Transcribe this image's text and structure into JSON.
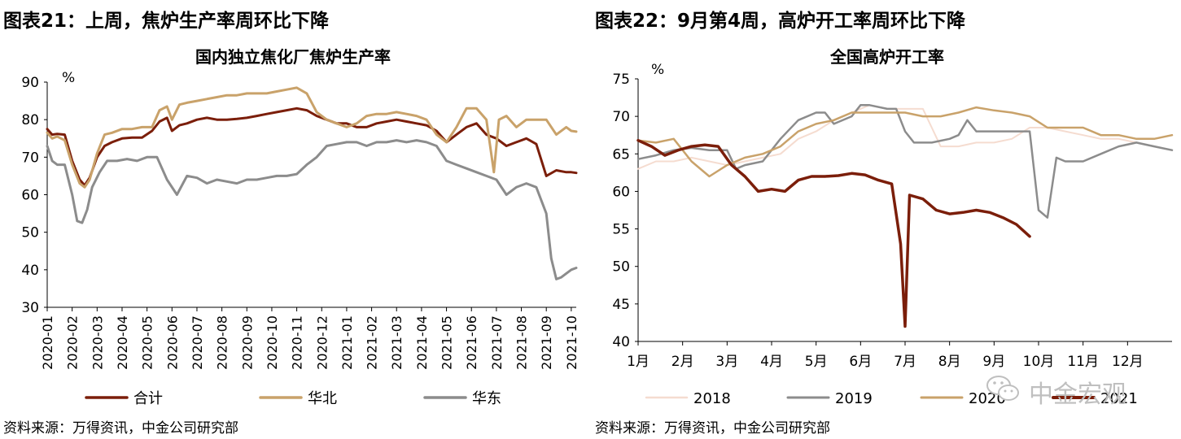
{
  "left": {
    "figure_title": "图表21：上周，焦炉生产率周环比下降",
    "source": "资料来源：万得资讯，中金公司研究部"
  },
  "right": {
    "figure_title": "图表22：9月第4周，高炉开工率周环比下降",
    "source": "资料来源：万得资讯，中金公司研究部"
  },
  "watermark": {
    "text": "中金宏观",
    "icon": "wechat-icon"
  },
  "chart_data": [
    {
      "type": "line",
      "title": "国内独立焦化厂焦炉生产率",
      "ylabel": "%",
      "ylim": [
        30,
        90
      ],
      "yticks": [
        30,
        40,
        50,
        60,
        70,
        80,
        90
      ],
      "xlim": [
        0,
        21.2
      ],
      "x_categories": [
        "2020-01",
        "2020-02",
        "2020-03",
        "2020-04",
        "2020-05",
        "2020-06",
        "2020-07",
        "2020-08",
        "2020-09",
        "2020-10",
        "2020-11",
        "2020-12",
        "2021-01",
        "2021-02",
        "2021-03",
        "2021-04",
        "2021-05",
        "2021-06",
        "2021-07",
        "2021-08",
        "2021-09",
        "2021-10"
      ],
      "grid": false,
      "legend_position": "bottom",
      "series": [
        {
          "name": "合计",
          "color": "#7b1e0a",
          "stroke_width": 3,
          "x": [
            0,
            0.2,
            0.4,
            0.7,
            1.0,
            1.3,
            1.5,
            1.7,
            2.0,
            2.3,
            2.6,
            3.0,
            3.4,
            3.8,
            4.2,
            4.5,
            4.8,
            5.0,
            5.3,
            5.6,
            6.0,
            6.4,
            6.8,
            7.2,
            7.6,
            8.0,
            8.4,
            8.8,
            9.2,
            9.6,
            10.0,
            10.4,
            10.8,
            11.2,
            11.6,
            12.0,
            12.4,
            12.8,
            13.2,
            13.6,
            14.0,
            14.4,
            14.8,
            15.2,
            15.6,
            16.0,
            16.4,
            16.8,
            17.2,
            17.6,
            18.0,
            18.4,
            18.8,
            19.2,
            19.6,
            20.0,
            20.4,
            20.8,
            21.0,
            21.2
          ],
          "y": [
            77.5,
            76,
            76.2,
            76,
            69,
            64,
            62.5,
            64.5,
            70,
            73,
            74,
            75,
            75.2,
            75.2,
            77,
            79.5,
            80.5,
            77,
            78.5,
            79,
            80,
            80.5,
            80,
            80,
            80.2,
            80.5,
            81,
            81.5,
            82,
            82.5,
            83,
            82.5,
            81,
            80,
            79,
            79,
            78,
            78,
            79,
            79.5,
            80,
            79.5,
            79,
            78.5,
            77,
            74,
            76,
            78,
            79,
            76,
            75,
            73,
            74,
            75,
            73.5,
            65,
            66.5,
            66,
            66,
            65.8
          ]
        },
        {
          "name": "华北",
          "color": "#c9a26a",
          "stroke_width": 3,
          "x": [
            0,
            0.2,
            0.4,
            0.7,
            1.0,
            1.3,
            1.5,
            1.7,
            2.0,
            2.3,
            2.6,
            3.0,
            3.4,
            3.8,
            4.2,
            4.5,
            4.8,
            5.0,
            5.3,
            5.6,
            6.0,
            6.4,
            6.8,
            7.2,
            7.6,
            8.0,
            8.4,
            8.8,
            9.2,
            9.6,
            10.0,
            10.4,
            10.8,
            11.2,
            11.6,
            12.0,
            12.4,
            12.8,
            13.2,
            13.6,
            14.0,
            14.4,
            14.8,
            15.2,
            15.6,
            16.0,
            16.4,
            16.8,
            17.2,
            17.6,
            17.9,
            18.1,
            18.4,
            18.8,
            19.2,
            19.6,
            20.0,
            20.4,
            20.8,
            21.0,
            21.2
          ],
          "y": [
            76.5,
            75,
            75.5,
            74.5,
            68,
            63,
            62,
            64,
            71,
            76,
            76.5,
            77.5,
            77.5,
            78,
            78,
            82.5,
            83.5,
            80,
            84,
            84.5,
            85,
            85.5,
            86,
            86.5,
            86.5,
            87,
            87,
            87,
            87.5,
            88,
            88.5,
            87,
            82,
            80,
            79,
            78,
            79,
            81,
            81.5,
            81.5,
            82,
            81.5,
            81,
            80,
            76,
            74,
            78,
            83,
            83,
            80,
            66,
            80,
            81,
            78,
            80,
            80,
            80,
            76,
            78,
            77,
            76.8
          ]
        },
        {
          "name": "华东",
          "color": "#8c8c8c",
          "stroke_width": 3,
          "x": [
            0,
            0.2,
            0.4,
            0.7,
            1.0,
            1.2,
            1.4,
            1.6,
            1.8,
            2.1,
            2.4,
            2.8,
            3.2,
            3.6,
            4.0,
            4.4,
            4.8,
            5.2,
            5.6,
            6.0,
            6.4,
            6.8,
            7.2,
            7.6,
            8.0,
            8.4,
            8.8,
            9.2,
            9.6,
            10.0,
            10.4,
            10.8,
            11.2,
            11.6,
            12.0,
            12.4,
            12.8,
            13.2,
            13.6,
            14.0,
            14.4,
            14.8,
            15.2,
            15.6,
            16.0,
            16.4,
            16.8,
            17.2,
            17.6,
            18.0,
            18.4,
            18.8,
            19.2,
            19.6,
            20.0,
            20.2,
            20.4,
            20.6,
            20.8,
            21.0,
            21.2
          ],
          "y": [
            73,
            69,
            68,
            68,
            60,
            53,
            52.5,
            56,
            62,
            66,
            69,
            69,
            69.5,
            69,
            70,
            70,
            64,
            60,
            65,
            64.5,
            63,
            64,
            63.5,
            63,
            64,
            64,
            64.5,
            65,
            65,
            65.5,
            68,
            70,
            73,
            73.5,
            74,
            74,
            73,
            74,
            74,
            74.5,
            74,
            74.5,
            74,
            73,
            69,
            68,
            67,
            66,
            65,
            64,
            60,
            62,
            63,
            62,
            55,
            43,
            37.5,
            38,
            39,
            40,
            40.5
          ]
        }
      ]
    },
    {
      "type": "line",
      "title": "全国高炉开工率",
      "ylabel": "%",
      "ylim": [
        40,
        75
      ],
      "yticks": [
        40,
        45,
        50,
        55,
        60,
        65,
        70,
        75
      ],
      "xlim": [
        1,
        13
      ],
      "x_categories": [
        "1月",
        "2月",
        "3月",
        "4月",
        "5月",
        "6月",
        "7月",
        "8月",
        "9月",
        "10月",
        "11月",
        "12月"
      ],
      "grid": false,
      "legend_position": "bottom",
      "series": [
        {
          "name": "2018",
          "color": "#f5dcd0",
          "stroke_width": 2,
          "x": [
            1,
            1.4,
            1.8,
            2.2,
            2.6,
            3.0,
            3.4,
            3.8,
            4.2,
            4.6,
            5.0,
            5.4,
            5.8,
            6.2,
            6.6,
            7.0,
            7.4,
            7.8,
            8.2,
            8.6,
            9.0,
            9.4,
            9.8,
            10.2,
            10.6,
            11.0,
            11.4,
            11.8,
            12.2,
            12.6,
            13.0
          ],
          "y": [
            63,
            64,
            64,
            64.5,
            64,
            63.5,
            64,
            64.5,
            65,
            67,
            68,
            69.5,
            70.5,
            71.5,
            71,
            71,
            71,
            66,
            66,
            66.5,
            66.5,
            67,
            68.5,
            68.5,
            68,
            67.5,
            67,
            67,
            66.5,
            66,
            65.5
          ]
        },
        {
          "name": "2019",
          "color": "#8c8c8c",
          "stroke_width": 2.5,
          "x": [
            1,
            1.4,
            1.8,
            2.2,
            2.6,
            3.0,
            3.2,
            3.4,
            3.8,
            4.2,
            4.6,
            5.0,
            5.2,
            5.4,
            5.8,
            6.0,
            6.2,
            6.6,
            6.8,
            7.0,
            7.2,
            7.6,
            8.0,
            8.2,
            8.4,
            8.6,
            9.0,
            9.4,
            9.6,
            9.8,
            10.0,
            10.2,
            10.4,
            10.6,
            11.0,
            11.4,
            11.8,
            12.2,
            12.6,
            13.0
          ],
          "y": [
            64.3,
            64.8,
            65.5,
            65.8,
            65.5,
            65.5,
            63,
            63.5,
            64,
            67,
            69.5,
            70.5,
            70.5,
            69,
            70,
            71.5,
            71.5,
            71,
            71,
            68,
            66.5,
            66.5,
            67,
            67.5,
            69.5,
            68,
            68,
            68,
            68,
            68,
            57.5,
            56.5,
            64.5,
            64,
            64,
            65,
            66,
            66.5,
            66,
            65.5
          ]
        },
        {
          "name": "2020",
          "color": "#c9a26a",
          "stroke_width": 2.5,
          "x": [
            1,
            1.4,
            1.8,
            2.2,
            2.6,
            3.0,
            3.4,
            3.8,
            4.2,
            4.6,
            5.0,
            5.4,
            5.8,
            6.2,
            6.6,
            7.0,
            7.4,
            7.8,
            8.2,
            8.6,
            9.0,
            9.4,
            9.8,
            10.2,
            10.6,
            11.0,
            11.4,
            11.8,
            12.2,
            12.6,
            13.0
          ],
          "y": [
            66.8,
            66.5,
            67,
            64,
            62,
            63.5,
            64.5,
            65,
            66,
            68,
            69,
            69.5,
            70.5,
            70.5,
            70.5,
            70.5,
            70,
            70,
            70.5,
            71.2,
            70.8,
            70.5,
            70,
            68.5,
            68.5,
            68.5,
            67.5,
            67.5,
            67,
            67,
            67.5
          ]
        },
        {
          "name": "2021",
          "color": "#7b1e0a",
          "stroke_width": 3.5,
          "x": [
            1,
            1.3,
            1.6,
            1.9,
            2.2,
            2.5,
            2.8,
            3.1,
            3.4,
            3.7,
            4.0,
            4.3,
            4.6,
            4.9,
            5.2,
            5.5,
            5.8,
            6.1,
            6.4,
            6.7,
            6.9,
            7.0,
            7.1,
            7.4,
            7.7,
            8.0,
            8.3,
            8.6,
            8.9,
            9.2,
            9.5,
            9.8
          ],
          "y": [
            66.8,
            66,
            64.8,
            65.5,
            66,
            66.2,
            66,
            63.5,
            62,
            60,
            60.3,
            60,
            61.5,
            62,
            62,
            62.1,
            62.4,
            62.2,
            61.5,
            61,
            53,
            42,
            59.5,
            59,
            57.5,
            57,
            57.2,
            57.5,
            57.2,
            56.5,
            55.6,
            54
          ]
        }
      ]
    }
  ]
}
